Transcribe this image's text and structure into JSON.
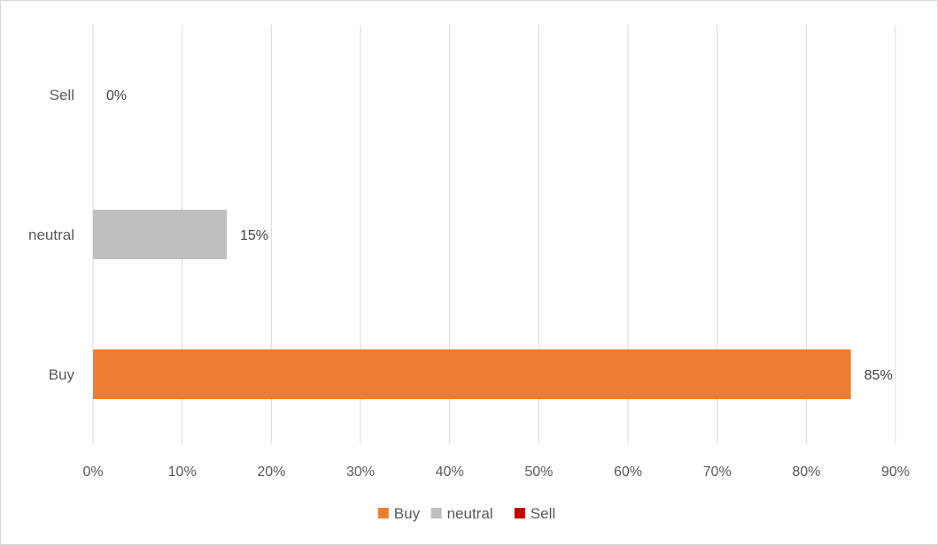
{
  "chart_data": {
    "type": "bar",
    "orientation": "horizontal",
    "categories": [
      "Buy",
      "neutral",
      "Sell"
    ],
    "values": [
      0.85,
      0.15,
      0.0
    ],
    "data_labels": [
      "85%",
      "15%",
      "0%"
    ],
    "colors": [
      "#ed7d31",
      "#bfbfbf",
      "#c00000"
    ],
    "xlim": [
      0,
      0.9
    ],
    "x_ticks": [
      0,
      0.1,
      0.2,
      0.3,
      0.4,
      0.5,
      0.6,
      0.7,
      0.8,
      0.9
    ],
    "x_tick_labels": [
      "0%",
      "10%",
      "20%",
      "30%",
      "40%",
      "50%",
      "60%",
      "70%",
      "80%",
      "90%"
    ],
    "grid": true,
    "legend": {
      "position": "bottom",
      "entries": [
        {
          "label": "Buy",
          "color": "#ed7d31"
        },
        {
          "label": "neutral",
          "color": "#bfbfbf"
        },
        {
          "label": "Sell",
          "color": "#c00000"
        }
      ]
    },
    "title": "",
    "xlabel": "",
    "ylabel": ""
  }
}
